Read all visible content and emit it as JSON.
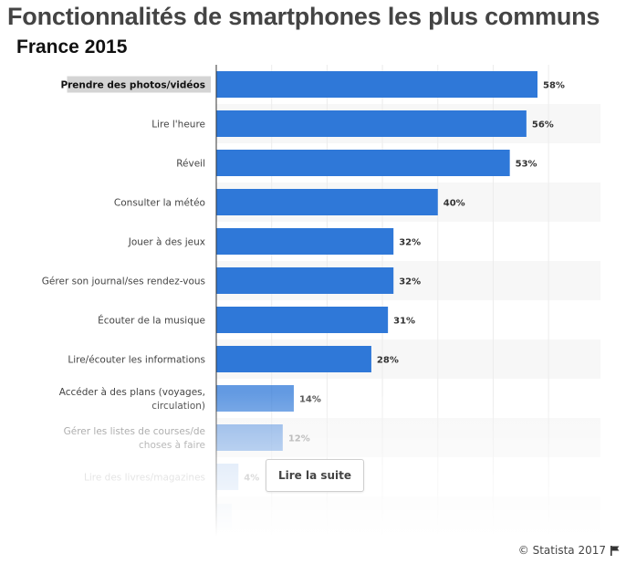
{
  "chart_data": {
    "type": "bar",
    "orientation": "horizontal",
    "title": "Fonctionnalités de smartphones les plus communs",
    "subtitle": "France 2015",
    "categories": [
      "Prendre des photos/vidéos",
      "Lire l'heure",
      "Réveil",
      "Consulter la météo",
      "Jouer à des jeux",
      "Gérer son journal/ses rendez-vous",
      "Écouter de la musique",
      "Lire/écouter les informations",
      "Accéder à des plans (voyages, circulation)",
      "Gérer les listes de courses/de choses à faire",
      "Lire des livres/magazines"
    ],
    "values": [
      58,
      56,
      53,
      40,
      32,
      32,
      31,
      28,
      14,
      12,
      4
    ],
    "value_labels": [
      "58%",
      "56%",
      "53%",
      "40%",
      "32%",
      "32%",
      "31%",
      "28%",
      "14%",
      "12%",
      "4%"
    ],
    "xlim": [
      0,
      70
    ],
    "unit": "%",
    "highlighted_category_index": 0,
    "bar_color": "#2f78d8"
  },
  "read_more": {
    "label": "Lire la suite"
  },
  "footer": {
    "copyright": "© Statista 2017"
  }
}
